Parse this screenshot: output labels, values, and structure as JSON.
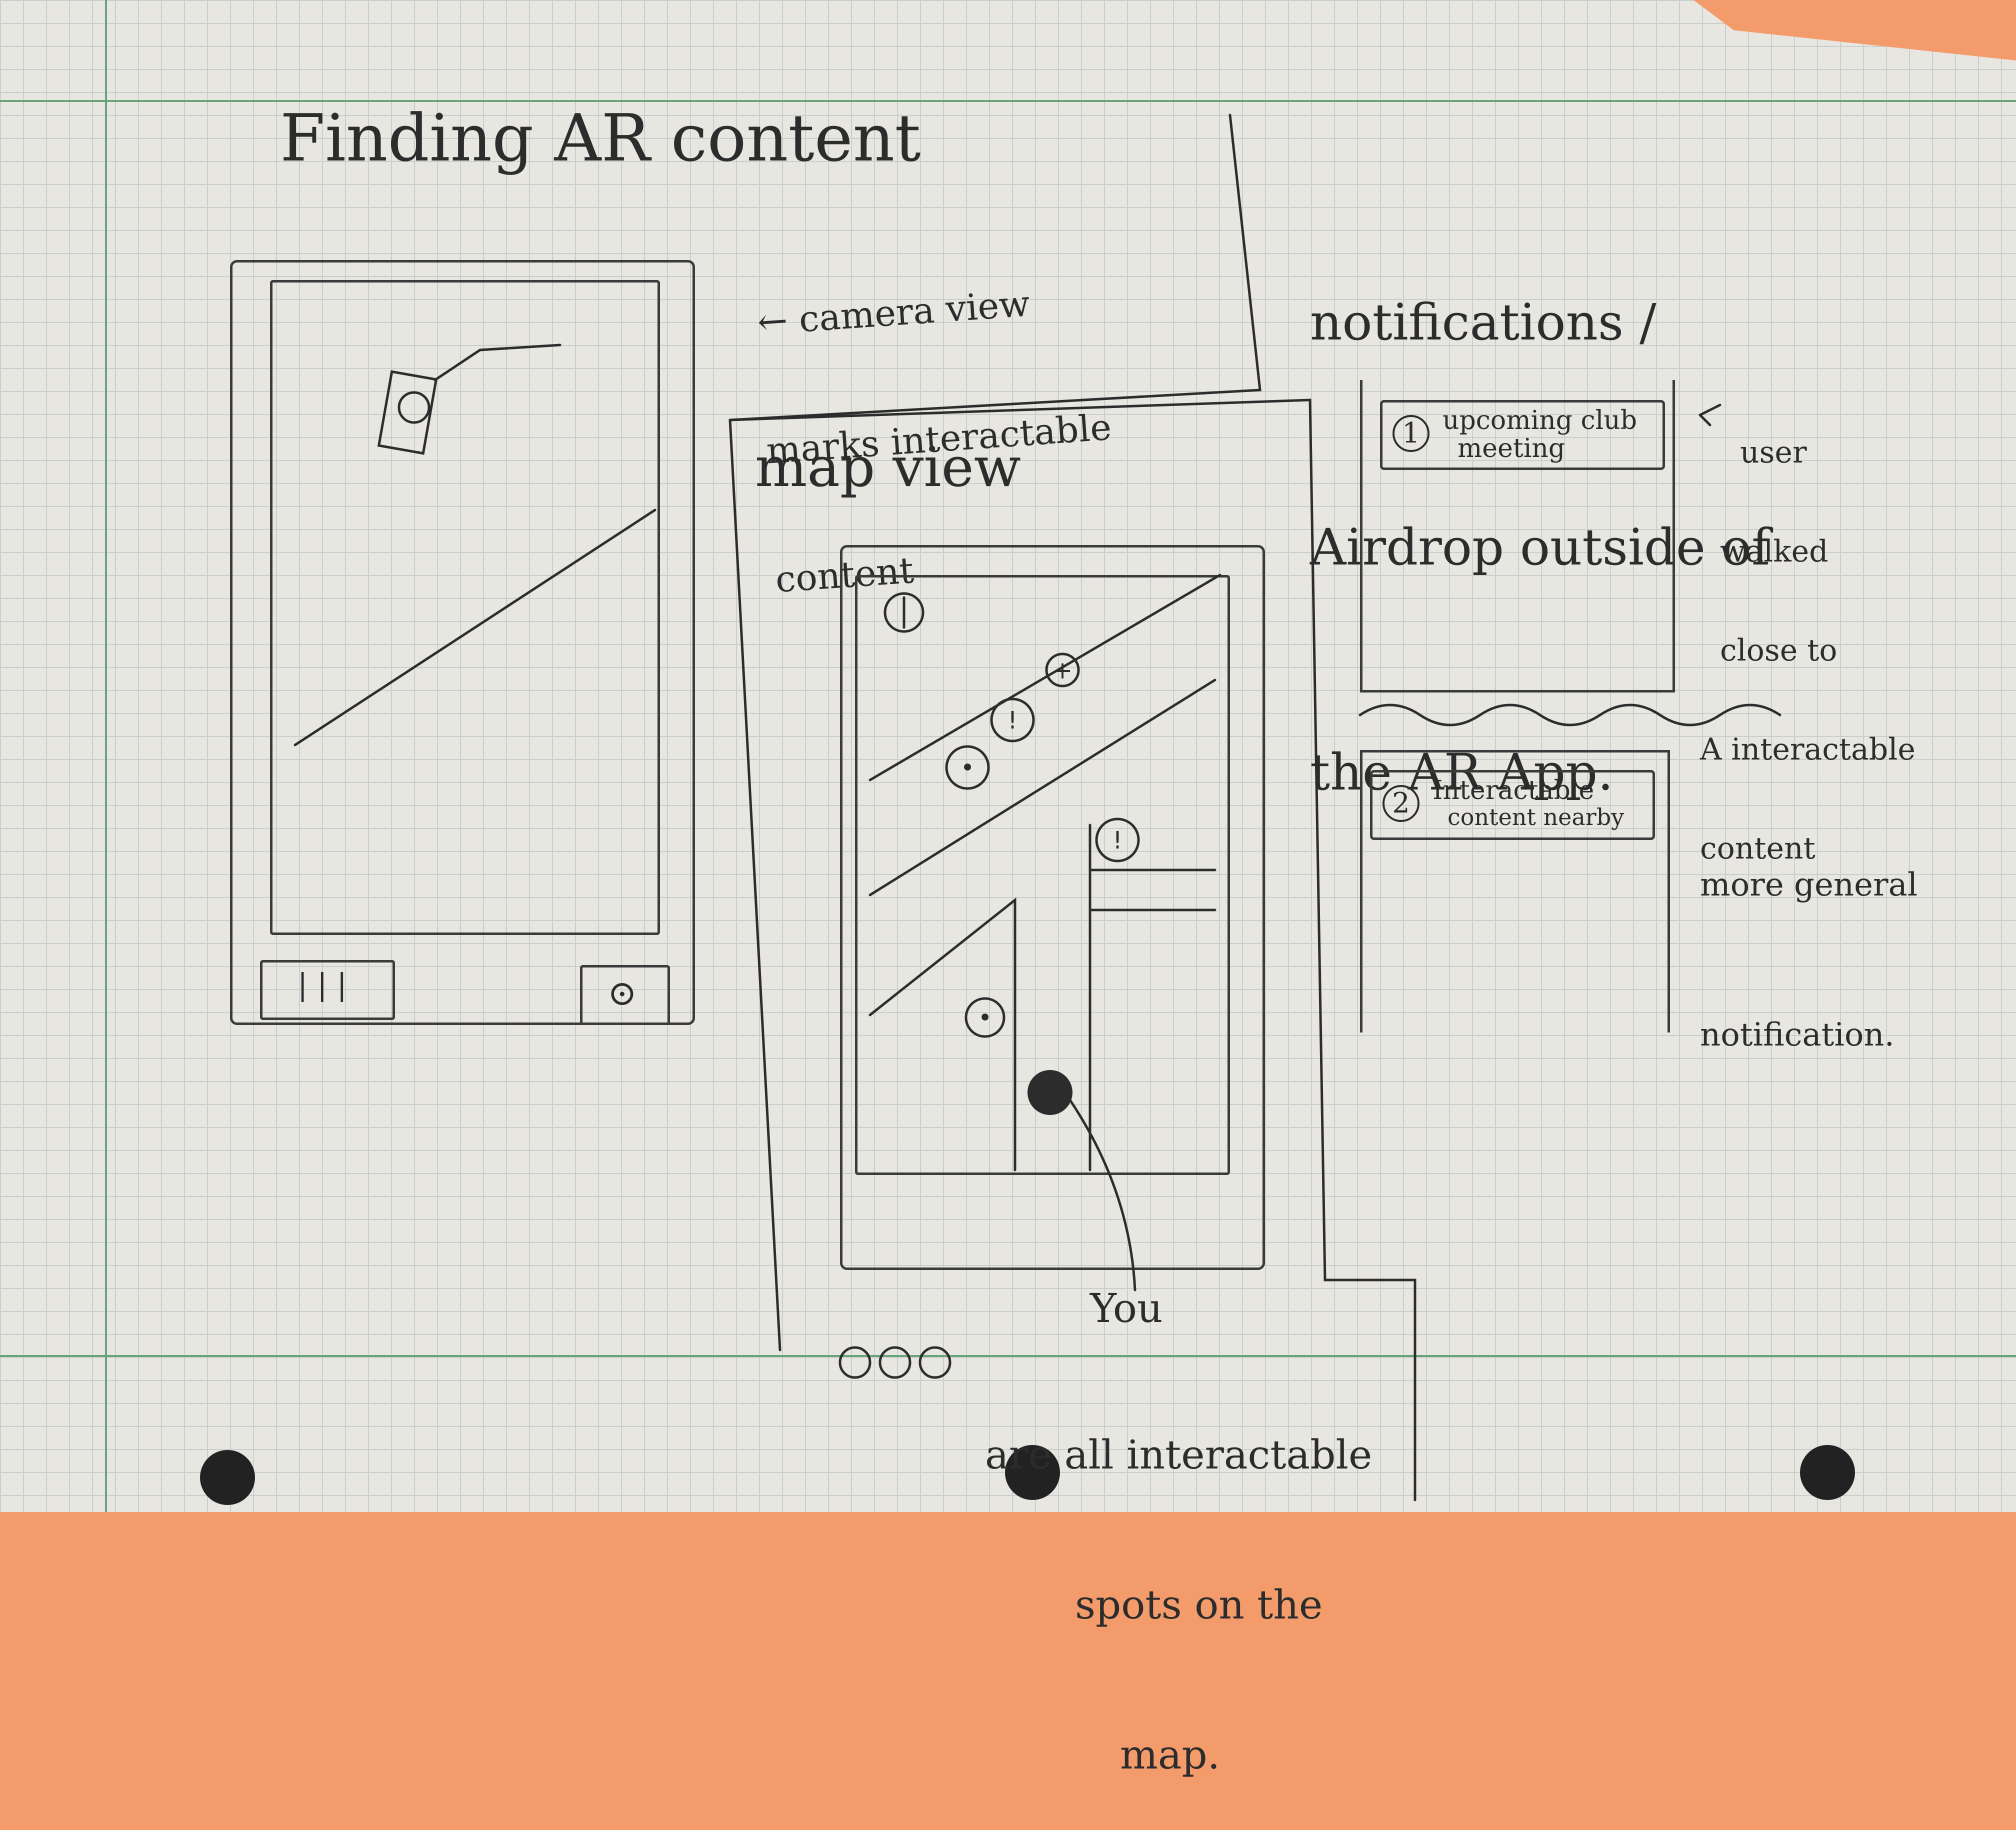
{
  "title": "Finding AR content",
  "notifications_heading": [
    "notifications /",
    "Airdrop outside of",
    "the AR App."
  ],
  "camera_view": {
    "annotation": [
      "← camera view",
      "marks interactable",
      "content"
    ]
  },
  "map_view": {
    "label": "map view",
    "marker_symbols": [
      "+",
      "!",
      "•",
      "!",
      "•"
    ],
    "you_label": "You",
    "legend": [
      "are all interactable",
      "spots on the",
      "map."
    ]
  },
  "notification_1": {
    "badge": "1",
    "text": [
      "upcoming club",
      "meeting"
    ],
    "note": [
      "user",
      "walked",
      "close to",
      "A interactable",
      "content"
    ]
  },
  "notification_2": {
    "badge": "2",
    "text": [
      "Interactable",
      "content nearby"
    ],
    "note": [
      "more general",
      "notification."
    ]
  },
  "colors": {
    "ink": "#2c2c2c",
    "grid": "#c9cfcc",
    "margin": "#6aa37a",
    "paper": "#e8e6e0",
    "background": "#f39b6b"
  }
}
